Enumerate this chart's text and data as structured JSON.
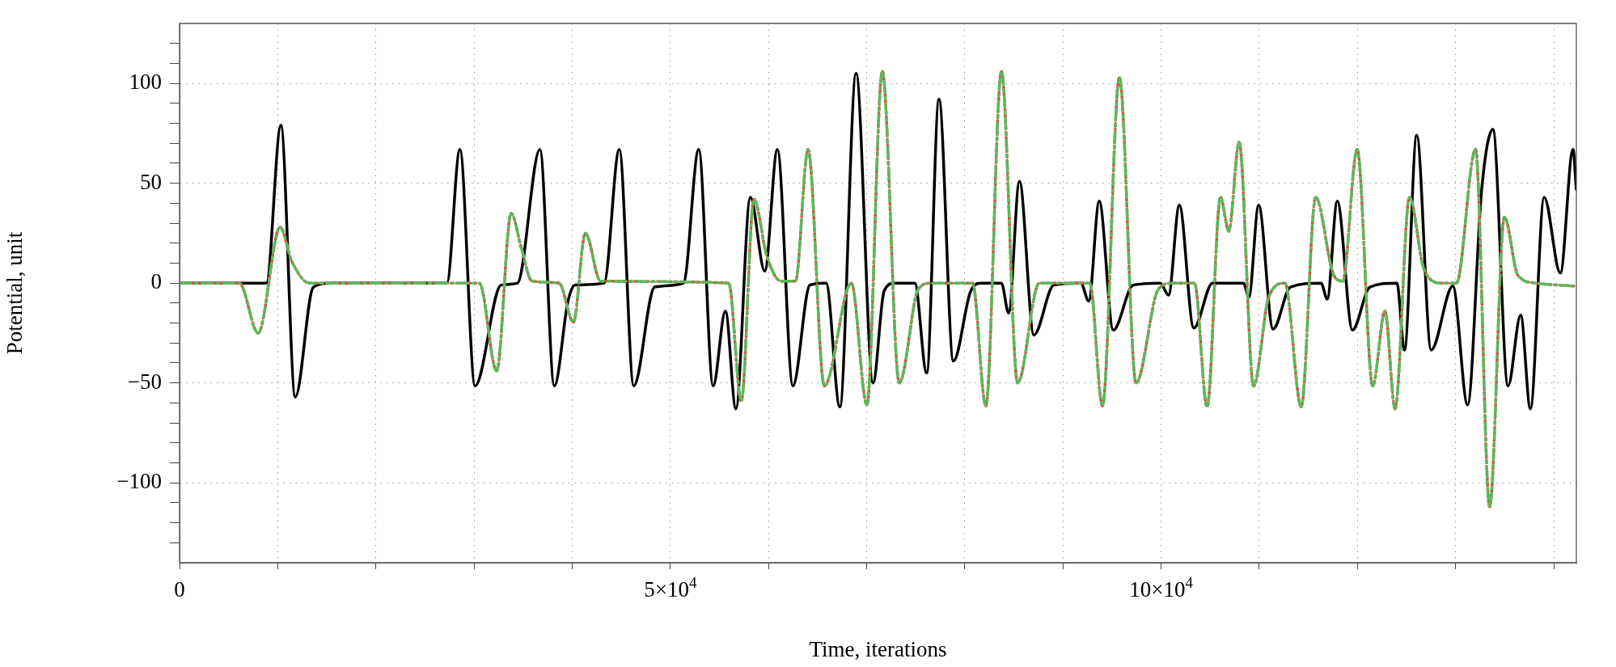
{
  "chart_data": {
    "type": "line",
    "xlabel": "Time, iterations",
    "ylabel": "Potential, unit",
    "xlim": [
      0,
      142300
    ],
    "ylim": [
      -140,
      130
    ],
    "xticks": [
      0,
      {
        "value": 10000,
        "label": null
      },
      {
        "value": 20000,
        "label": null
      },
      {
        "value": 30000,
        "label": null
      },
      {
        "value": 40000,
        "label": null
      },
      {
        "value": 50000,
        "label": "5×10$^{4}$"
      },
      {
        "value": 60000,
        "label": null
      },
      {
        "value": 70000,
        "label": null
      },
      {
        "value": 80000,
        "label": null
      },
      {
        "value": 90000,
        "label": null
      },
      {
        "value": 100000,
        "label": "10×10$^{4}$"
      },
      {
        "value": 110000,
        "label": null
      },
      {
        "value": 120000,
        "label": null
      },
      {
        "value": 130000,
        "label": null
      },
      {
        "value": 140000,
        "label": null
      }
    ],
    "yticks": [
      {
        "value": -130,
        "label": null
      },
      {
        "value": -120,
        "label": null
      },
      {
        "value": -110,
        "label": null
      },
      -100,
      {
        "value": -90,
        "label": null
      },
      {
        "value": -80,
        "label": null
      },
      {
        "value": -70,
        "label": null
      },
      {
        "value": -60,
        "label": null
      },
      -50,
      {
        "value": -40,
        "label": null
      },
      {
        "value": -30,
        "label": null
      },
      {
        "value": -20,
        "label": null
      },
      {
        "value": -10,
        "label": null
      },
      0,
      {
        "value": 10,
        "label": null
      },
      {
        "value": 20,
        "label": null
      },
      {
        "value": 30,
        "label": null
      },
      {
        "value": 40,
        "label": null
      },
      50,
      {
        "value": 60,
        "label": null
      },
      {
        "value": 70,
        "label": null
      },
      {
        "value": 80,
        "label": null
      },
      {
        "value": 90,
        "label": null
      },
      100,
      {
        "value": 110,
        "label": null
      },
      {
        "value": 120,
        "label": null
      }
    ],
    "grid": true,
    "legend": false,
    "marker": "none",
    "series": [
      {
        "color": "#000000",
        "line_style": "solid",
        "x": [
          0,
          8850,
          10322,
          11793,
          13631,
          15470,
          27236,
          28560,
          30104,
          32752,
          34431,
          36711,
          38182,
          39579,
          40314,
          43256,
          44800,
          46271,
          48403,
          51345,
          52890,
          54360,
          55610,
          56677,
          58148,
          59619,
          60905,
          62486,
          64214,
          65869,
          67267,
          68921,
          70650,
          71776,
          72879,
          74901,
          76115,
          77365,
          78836,
          80601,
          81704,
          83726,
          84462,
          85565,
          87036,
          89058,
          91815,
          92625,
          93691,
          95125,
          97148,
          99906,
          100751,
          101854,
          103325,
          105237,
          108387,
          108938,
          109931,
          111402,
          113167,
          116292,
          116917,
          117947,
          119491,
          121256,
          124014,
          124786,
          126036,
          127507,
          129713,
          131221,
          132655,
          133795,
          135339,
          136626,
          137619,
          139016,
          140670,
          141958,
          142290
        ],
        "values": [
          0,
          0,
          79,
          -57,
          -2,
          0,
          0,
          67,
          -51.5,
          -1,
          0,
          67,
          -51.5,
          -9,
          -1,
          0,
          67,
          -51.5,
          -2,
          0,
          67,
          -51.5,
          -14,
          -63,
          43,
          6,
          67,
          -51.5,
          -1,
          0,
          -62,
          105,
          -50,
          -4,
          0,
          0,
          -45,
          92,
          -39,
          -4,
          0,
          0,
          -15,
          51,
          -26,
          -1,
          0,
          -9,
          41,
          -23.5,
          -1,
          0,
          -6,
          39,
          -22.5,
          0,
          0,
          -7,
          39,
          -23,
          -2,
          0,
          -8,
          41,
          -23.5,
          -2,
          0,
          -33.5,
          74,
          -33.5,
          -1.5,
          -61,
          47,
          77,
          -51.5,
          -16,
          -63,
          43,
          5,
          67,
          47
        ]
      },
      {
        "color": "#ee3a2c",
        "line_style": "dotted",
        "x": [
          0,
          6094,
          8006,
          10249,
          11425,
          13264,
          30546,
          32311,
          33782,
          34799,
          35902,
          38660,
          40130,
          41344,
          42888,
          55941,
          57228,
          58516,
          59803,
          61274,
          62745,
          64032,
          65686,
          68444,
          70025,
          71592,
          73320,
          75269,
          76556,
          80785,
          82145,
          83726,
          85381,
          87587,
          92735,
          94022,
          95750,
          97442,
          99722,
          101192,
          103398,
          104685,
          106046,
          106891,
          107946,
          109416,
          110961,
          112616,
          114270,
          115741,
          117580,
          118499,
          119970,
          121551,
          122801,
          123831,
          125302,
          126772,
          128611,
          130081,
          132030,
          133464,
          134972,
          136332,
          138171,
          142032
        ],
        "values": [
          0,
          0,
          -25,
          28,
          11,
          0,
          0,
          -44,
          35,
          18,
          1,
          0,
          -19.5,
          25,
          1,
          0,
          -59,
          42,
          14,
          1,
          1,
          67,
          -51.5,
          0,
          -61,
          106,
          -50,
          -3,
          0,
          0,
          -61.5,
          106,
          -50,
          0,
          0,
          -61.5,
          103,
          -50,
          -3,
          0,
          0,
          -62,
          43,
          26,
          70.5,
          -51.5,
          -7,
          0,
          -62,
          43,
          4,
          1,
          67,
          -51.5,
          -14,
          -63,
          43,
          7,
          0,
          0,
          67,
          -112,
          33,
          4,
          0,
          -1.5
        ]
      },
      {
        "color": "#5cb85c",
        "line_style": "dashed",
        "x": [
          0,
          6094,
          8006,
          10249,
          11425,
          13264,
          30546,
          32311,
          33782,
          34799,
          35902,
          38660,
          40130,
          41344,
          42888,
          55941,
          57228,
          58516,
          59803,
          61274,
          62745,
          64032,
          65686,
          68444,
          70025,
          71592,
          73320,
          75269,
          76556,
          80785,
          82145,
          83726,
          85381,
          87587,
          92735,
          94022,
          95750,
          97442,
          99722,
          101192,
          103398,
          104685,
          106046,
          106891,
          107946,
          109416,
          110961,
          112616,
          114270,
          115741,
          117580,
          118499,
          119970,
          121551,
          122801,
          123831,
          125302,
          126772,
          128611,
          130081,
          132030,
          133464,
          134972,
          136332,
          138171,
          142032
        ],
        "values": [
          0,
          0,
          -25,
          28,
          11,
          0,
          0,
          -44,
          35,
          18,
          1,
          0,
          -19.5,
          25,
          1,
          0,
          -59,
          42,
          14,
          1,
          1,
          67,
          -51.5,
          0,
          -61,
          106,
          -50,
          -3,
          0,
          0,
          -61.5,
          106,
          -50,
          0,
          0,
          -61.5,
          103,
          -50,
          -3,
          0,
          0,
          -62,
          43,
          26,
          70.5,
          -51.5,
          -7,
          0,
          -62,
          43,
          4,
          1,
          67,
          -51.5,
          -14,
          -63,
          43,
          7,
          0,
          0,
          67,
          -112,
          33,
          4,
          0,
          -1.5
        ]
      }
    ]
  }
}
